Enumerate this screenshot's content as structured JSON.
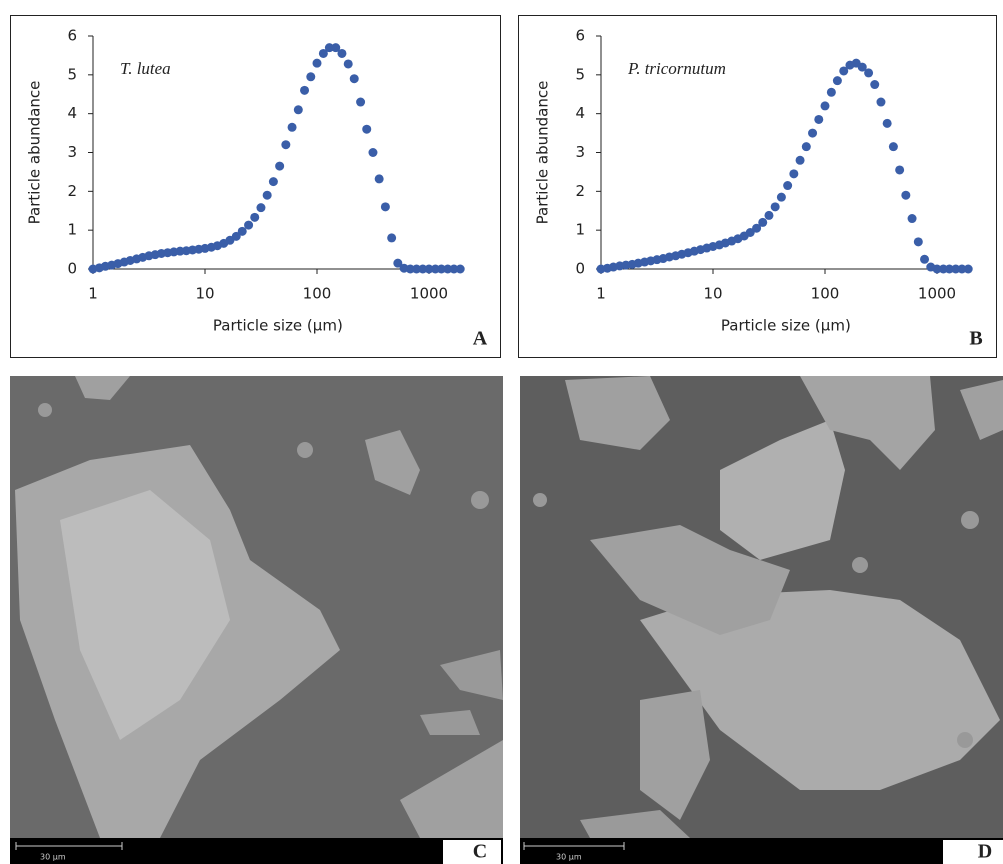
{
  "chart_data": [
    {
      "type": "scatter",
      "annotation": "T. lutea",
      "panel_label": "A",
      "x_label": "Particle size (μm)",
      "y_label": "Particle abundance",
      "x": [
        1,
        1.14,
        1.29,
        1.47,
        1.67,
        1.9,
        2.15,
        2.45,
        2.78,
        3.16,
        3.59,
        4.08,
        4.64,
        5.27,
        5.99,
        6.81,
        7.74,
        8.8,
        10,
        11.4,
        12.9,
        14.7,
        16.7,
        19,
        21.5,
        24.5,
        27.8,
        31.6,
        35.9,
        40.8,
        46.4,
        52.7,
        59.9,
        68.1,
        77.4,
        88,
        100,
        114,
        129,
        147,
        167,
        190,
        215,
        245,
        278,
        316,
        359,
        408,
        464,
        527,
        599,
        681,
        774,
        880,
        1000,
        1140,
        1290,
        1470,
        1670,
        1900
      ],
      "values": [
        0,
        0.03,
        0.07,
        0.1,
        0.14,
        0.18,
        0.22,
        0.26,
        0.3,
        0.34,
        0.37,
        0.4,
        0.42,
        0.44,
        0.46,
        0.47,
        0.49,
        0.51,
        0.53,
        0.56,
        0.6,
        0.66,
        0.74,
        0.84,
        0.97,
        1.13,
        1.33,
        1.58,
        1.9,
        2.25,
        2.65,
        3.2,
        3.65,
        4.1,
        4.6,
        4.95,
        5.3,
        5.55,
        5.7,
        5.7,
        5.55,
        5.28,
        4.9,
        4.3,
        3.6,
        3.0,
        2.32,
        1.6,
        0.8,
        0.15,
        0.02,
        0,
        0,
        0,
        0,
        0,
        0,
        0,
        0,
        0
      ],
      "color": "#3a5ea8",
      "xscale": "log",
      "xlim": [
        1,
        2000
      ],
      "xticks": [
        1,
        10,
        100,
        1000
      ],
      "ylim": [
        0,
        6
      ],
      "yticks": [
        0,
        1,
        2,
        3,
        4,
        5,
        6
      ]
    },
    {
      "type": "scatter",
      "annotation": "P. tricornutum",
      "panel_label": "B",
      "x_label": "Particle size (μm)",
      "y_label": "Particle abundance",
      "x": [
        1,
        1.14,
        1.29,
        1.47,
        1.67,
        1.9,
        2.15,
        2.45,
        2.78,
        3.16,
        3.59,
        4.08,
        4.64,
        5.27,
        5.99,
        6.81,
        7.74,
        8.8,
        10,
        11.4,
        12.9,
        14.7,
        16.7,
        19,
        21.5,
        24.5,
        27.8,
        31.6,
        35.9,
        40.8,
        46.4,
        52.7,
        59.9,
        68.1,
        77.4,
        88,
        100,
        114,
        129,
        147,
        167,
        190,
        215,
        245,
        278,
        316,
        359,
        408,
        464,
        527,
        599,
        681,
        774,
        880,
        1000,
        1140,
        1290,
        1470,
        1670,
        1900
      ],
      "values": [
        0,
        0.02,
        0.05,
        0.08,
        0.1,
        0.12,
        0.15,
        0.18,
        0.21,
        0.24,
        0.27,
        0.31,
        0.34,
        0.38,
        0.42,
        0.46,
        0.5,
        0.54,
        0.58,
        0.62,
        0.67,
        0.72,
        0.78,
        0.85,
        0.94,
        1.05,
        1.2,
        1.38,
        1.6,
        1.85,
        2.15,
        2.45,
        2.8,
        3.15,
        3.5,
        3.85,
        4.2,
        4.55,
        4.85,
        5.1,
        5.25,
        5.3,
        5.2,
        5.05,
        4.75,
        4.3,
        3.75,
        3.15,
        2.55,
        1.9,
        1.3,
        0.7,
        0.25,
        0.05,
        0,
        0,
        0,
        0,
        0,
        0
      ],
      "color": "#3a5ea8",
      "xscale": "log",
      "xlim": [
        1,
        2000
      ],
      "xticks": [
        1,
        10,
        100,
        1000
      ],
      "ylim": [
        0,
        6
      ],
      "yticks": [
        0,
        1,
        2,
        3,
        4,
        5,
        6
      ]
    }
  ],
  "images": [
    {
      "panel_label": "C",
      "scale_bar": "30 μm"
    },
    {
      "panel_label": "D",
      "scale_bar": "30 μm"
    }
  ]
}
